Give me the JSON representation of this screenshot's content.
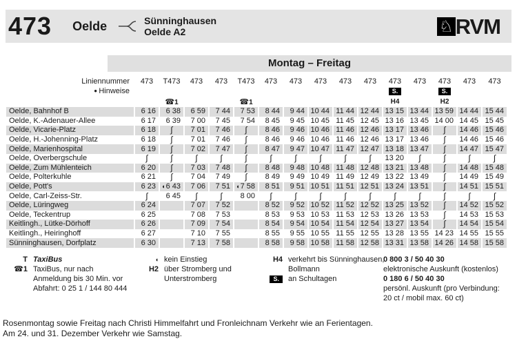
{
  "header": {
    "route_number": "473",
    "origin": "Oelde",
    "branch_destinations": [
      "Sünninghausen",
      "Oelde A2"
    ],
    "operator": {
      "name": "RVM",
      "logo_icon": "westphalian-horse"
    }
  },
  "colors": {
    "stripe": "#dcdcdc",
    "title_bar": "#e4e4e4",
    "day_band": "#e0e0e0",
    "badge_bg": "#000000",
    "badge_fg": "#ffffff"
  },
  "timetable": {
    "day_title": "Montag – Freitag",
    "line_row_label": "Liniennummer",
    "notes_bullet": "●",
    "notes_row_label": "Hinweise",
    "skip_symbol": "∫",
    "no_boarding_symbol": "◖",
    "phone_symbol": "☎",
    "columns": [
      {
        "line": "473"
      },
      {
        "line": "T473",
        "phone": "1"
      },
      {
        "line": "473"
      },
      {
        "line": "473"
      },
      {
        "line": "T473",
        "phone": "1"
      },
      {
        "line": "473"
      },
      {
        "line": "473"
      },
      {
        "line": "473"
      },
      {
        "line": "473"
      },
      {
        "line": "473"
      },
      {
        "line": "473",
        "badge": "S.",
        "hint": "H4"
      },
      {
        "line": "473"
      },
      {
        "line": "473",
        "badge": "S.",
        "hint": "H2"
      },
      {
        "line": "473"
      },
      {
        "line": "473"
      }
    ],
    "stops": [
      {
        "name": "Oelde, Bahnhof B",
        "times": [
          "6 16",
          "6 38",
          "6 59",
          "7 44",
          "7 53",
          "8 44",
          "9 44",
          "10 44",
          "11 44",
          "12 44",
          "13 15",
          "13 44",
          "13 59",
          "14 44",
          "15 44"
        ]
      },
      {
        "name": "Oelde, K.-Adenauer-Allee",
        "times": [
          "6 17",
          "6 39",
          "7 00",
          "7 45",
          "7 54",
          "8 45",
          "9 45",
          "10 45",
          "11 45",
          "12 45",
          "13 16",
          "13 45",
          "14 00",
          "14 45",
          "15 45"
        ]
      },
      {
        "name": "Oelde, Vicarie-Platz",
        "times": [
          "6 18",
          "~",
          "7 01",
          "7 46",
          "~",
          "8 46",
          "9 46",
          "10 46",
          "11 46",
          "12 46",
          "13 17",
          "13 46",
          "~",
          "14 46",
          "15 46"
        ]
      },
      {
        "name": "Oelde, H.-Johenning-Platz",
        "times": [
          "6 18",
          "~",
          "7 01",
          "7 46",
          "~",
          "8 46",
          "9 46",
          "10 46",
          "11 46",
          "12 46",
          "13 17",
          "13 46",
          "~",
          "14 46",
          "15 46"
        ]
      },
      {
        "name": "Oelde, Marienhospital",
        "times": [
          "6 19",
          "~",
          "7 02",
          "7 47",
          "~",
          "8 47",
          "9 47",
          "10 47",
          "11 47",
          "12 47",
          "13 18",
          "13 47",
          "~",
          "14 47",
          "15 47"
        ]
      },
      {
        "name": "Oelde, Overbergschule",
        "times": [
          "~",
          "~",
          "~",
          "~",
          "~",
          "~",
          "~",
          "~",
          "~",
          "~",
          "13 20",
          "~",
          "~",
          "~",
          "~"
        ]
      },
      {
        "name": "Oelde, Zum Mühlenteich",
        "times": [
          "6 20",
          "~",
          "7 03",
          "7 48",
          "~",
          "8 48",
          "9 48",
          "10 48",
          "11 48",
          "12 48",
          "13 21",
          "13 48",
          "~",
          "14 48",
          "15 48"
        ]
      },
      {
        "name": "Oelde, Polterkuhle",
        "times": [
          "6 21",
          "~",
          "7 04",
          "7 49",
          "~",
          "8 49",
          "9 49",
          "10 49",
          "11 49",
          "12 49",
          "13 22",
          "13 49",
          "~",
          "14 49",
          "15 49"
        ]
      },
      {
        "name": "Oelde, Pott's",
        "times": [
          "6 23",
          "*6 43",
          "7 06",
          "7 51",
          "*7 58",
          "8 51",
          "9 51",
          "10 51",
          "11 51",
          "12 51",
          "13 24",
          "13 51",
          "~",
          "14 51",
          "15 51"
        ]
      },
      {
        "name": "Oelde, Carl-Zeiss-Str.",
        "times": [
          "~",
          "6 45",
          "~",
          "~",
          "8 00",
          "~",
          "~",
          "~",
          "~",
          "~",
          "~",
          "~",
          "~",
          "~",
          "~"
        ]
      },
      {
        "name": "Oelde, Lüringweg",
        "times": [
          "6 24",
          "",
          "7 07",
          "7 52",
          "",
          "8 52",
          "9 52",
          "10 52",
          "11 52",
          "12 52",
          "13 25",
          "13 52",
          "~",
          "14 52",
          "15 52"
        ]
      },
      {
        "name": "Oelde, Teckentrup",
        "times": [
          "6 25",
          "",
          "7 08",
          "7 53",
          "",
          "8 53",
          "9 53",
          "10 53",
          "11 53",
          "12 53",
          "13 26",
          "13 53",
          "~",
          "14 53",
          "15 53"
        ]
      },
      {
        "name": "Keitlingh., Lütke-Dörhoff",
        "times": [
          "6 26",
          "",
          "7 09",
          "7 54",
          "",
          "8 54",
          "9 54",
          "10 54",
          "11 54",
          "12 54",
          "13 27",
          "13 54",
          "~",
          "14 54",
          "15 54"
        ]
      },
      {
        "name": "Keitlingh., Heiringhoff",
        "times": [
          "6 27",
          "",
          "7 10",
          "7 55",
          "",
          "8 55",
          "9 55",
          "10 55",
          "11 55",
          "12 55",
          "13 28",
          "13 55",
          "14 23",
          "14 55",
          "15 55"
        ]
      },
      {
        "name": "Sünninghausen, Dorfplatz",
        "times": [
          "6 30",
          "",
          "7 13",
          "7 58",
          "",
          "8 58",
          "9 58",
          "10 58",
          "11 58",
          "12 58",
          "13 31",
          "13 58",
          "14 26",
          "14 58",
          "15 58"
        ]
      }
    ]
  },
  "legend": {
    "taxibus": {
      "symbol": "T",
      "label": "TaxiBus"
    },
    "taxibus_phone": {
      "phone_number": "1",
      "lines": [
        "TaxiBus, nur nach",
        "Anmeldung bis 30 Min. vor",
        "Abfahrt: 0 25 1 / 144 80 444"
      ]
    },
    "no_boarding": {
      "symbol": "◖",
      "label": "kein Einstieg"
    },
    "h2": {
      "symbol": "H2",
      "lines": [
        "über Stromberg und",
        "Unterstromberg"
      ]
    },
    "h4": {
      "symbol": "H4",
      "lines": [
        "verkehrt bis Sünninghausen,",
        "Bollmann"
      ]
    },
    "school_days": {
      "symbol": "S.",
      "label": "an Schultagen"
    }
  },
  "contact": {
    "phone_free": "0 800 3 / 50 40 30",
    "phone_free_desc": "elektronische Auskunft (kostenlos)",
    "phone_paid": "0 180 6 / 50 40 30",
    "phone_paid_desc": [
      "persönl. Auskunft (pro Verbindung:",
      "20 ct / mobil max. 60 ct)"
    ]
  },
  "footer": {
    "lines": [
      "Rosenmontag sowie Freitag nach Christi Himmelfahrt und Fronleichnam Verkehr wie an Ferientagen.",
      "Am 24. und 31. Dezember Verkehr wie Samstag."
    ]
  }
}
